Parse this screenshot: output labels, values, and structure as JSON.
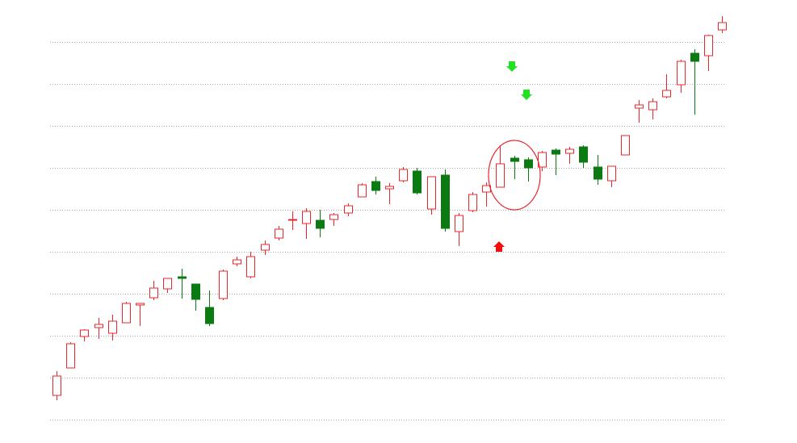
{
  "chart_data": {
    "type": "candlestick",
    "open": [
      30,
      64,
      103,
      114,
      107,
      120,
      142,
      151,
      162,
      177,
      168,
      139,
      150,
      193,
      177,
      210,
      225,
      247,
      243,
      247,
      248,
      256,
      276,
      295,
      286,
      296,
      308,
      261,
      303,
      233,
      259,
      282,
      288,
      324,
      322,
      313,
      334,
      330,
      338,
      313,
      296,
      328,
      386,
      384,
      400,
      415,
      454,
      451,
      483
    ],
    "high": [
      60,
      96,
      112,
      126,
      130,
      146,
      144,
      172,
      175,
      187,
      168,
      160,
      186,
      202,
      208,
      222,
      240,
      258,
      262,
      260,
      256,
      268,
      293,
      301,
      293,
      313,
      312,
      301,
      310,
      256,
      282,
      294,
      340,
      327,
      325,
      333,
      336,
      338,
      340,
      328,
      314,
      352,
      396,
      398,
      428,
      446,
      459,
      477,
      500
    ],
    "low": [
      24,
      64,
      97,
      100,
      98,
      120,
      116,
      148,
      157,
      150,
      135,
      116,
      148,
      190,
      175,
      204,
      222,
      235,
      224,
      226,
      240,
      252,
      276,
      279,
      267,
      294,
      279,
      254,
      233,
      215,
      257,
      264,
      288,
      298,
      295,
      308,
      303,
      317,
      312,
      291,
      288,
      328,
      368,
      372,
      398,
      405,
      378,
      432,
      479
    ],
    "close": [
      54,
      94,
      111,
      118,
      122,
      144,
      144,
      163,
      175,
      175,
      149,
      119,
      184,
      198,
      202,
      217,
      236,
      248,
      258,
      237,
      254,
      265,
      291,
      284,
      289,
      310,
      281,
      301,
      237,
      253,
      279,
      290,
      317,
      320,
      312,
      331,
      329,
      335,
      319,
      298,
      314,
      352,
      390,
      394,
      408,
      444,
      444,
      476,
      492
    ],
    "up_color": "#e8262c",
    "down_color": "#0b7a12",
    "ylim": [
      -29,
      520
    ],
    "yticks": [
      0,
      52,
      104,
      156,
      208,
      260,
      312,
      364,
      416,
      468
    ],
    "grid": true
  }
}
